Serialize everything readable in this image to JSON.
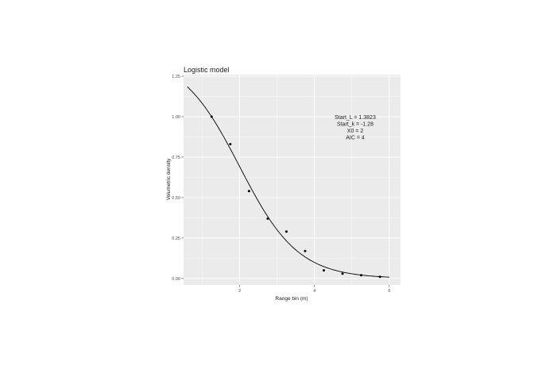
{
  "chart_data": {
    "type": "scatter",
    "title": "Logistic model",
    "xlabel": "Range bin (m)",
    "ylabel": "Volumetric density",
    "xlim": [
      0.5,
      6.3
    ],
    "ylim": [
      -0.04,
      1.26
    ],
    "x_ticks": [
      2,
      4,
      6
    ],
    "y_ticks": [
      0.0,
      0.25,
      0.5,
      0.75,
      1.0,
      1.25
    ],
    "y_tick_labels": [
      "0.00",
      "0.25",
      "0.50",
      "0.75",
      "1.00",
      "1.25"
    ],
    "x_tick_labels": [
      "2",
      "4",
      "6"
    ],
    "grid": true,
    "points": [
      {
        "x": 1.25,
        "y": 1.0
      },
      {
        "x": 1.75,
        "y": 0.83
      },
      {
        "x": 2.25,
        "y": 0.54
      },
      {
        "x": 2.75,
        "y": 0.37
      },
      {
        "x": 3.25,
        "y": 0.29
      },
      {
        "x": 3.75,
        "y": 0.17
      },
      {
        "x": 4.25,
        "y": 0.05
      },
      {
        "x": 4.75,
        "y": 0.03
      },
      {
        "x": 5.25,
        "y": 0.02
      },
      {
        "x": 5.75,
        "y": 0.01
      }
    ],
    "curve": {
      "L": 1.3823,
      "k": -1.28,
      "x0": 2,
      "x_range": [
        0.6,
        6.0
      ]
    },
    "annotation": [
      "Start_L = 1.3823",
      "Start_k = -1.28",
      "X0 = 2",
      "AIC = 4"
    ],
    "colors": {
      "panel": "#ebebeb",
      "grid_major": "#ffffff",
      "points": "#000000",
      "curve": "#000000"
    }
  }
}
